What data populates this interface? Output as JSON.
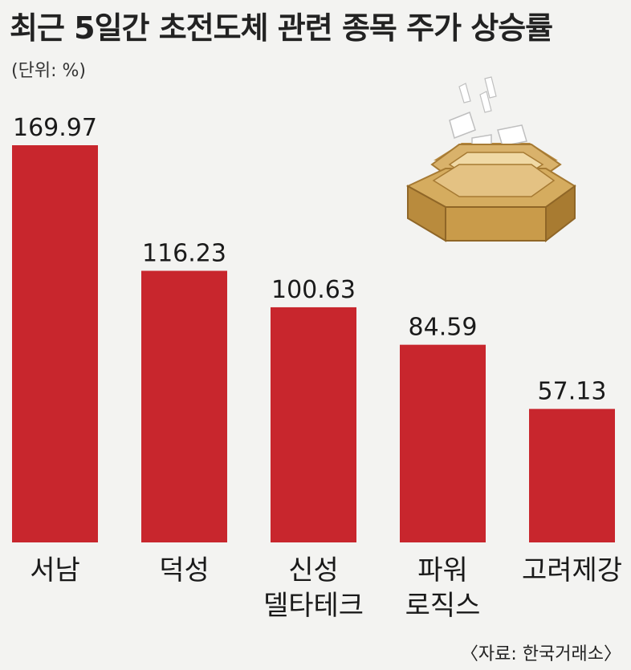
{
  "header": {
    "title": "최근 5일간 초전도체 관련 종목 주가 상승률",
    "unit": "(단위: %)"
  },
  "source": "〈자료: 한국거래소〉",
  "chart_data": {
    "type": "bar",
    "categories": [
      [
        "서남"
      ],
      [
        "덕성"
      ],
      [
        "신성",
        "델타테크"
      ],
      [
        "파워",
        "로직스"
      ],
      [
        "고려제강"
      ]
    ],
    "values": [
      169.97,
      116.23,
      100.63,
      84.59,
      57.13
    ],
    "value_labels": [
      "169.97",
      "116.23",
      "100.63",
      "84.59",
      "57.13"
    ],
    "ylim": [
      0,
      169.97
    ],
    "bar_color": "#c8262d",
    "grid": false,
    "legend": "none"
  },
  "colors": {
    "bar": "#c8262d",
    "background": "#f3f3f1",
    "ballot_box": "#d2a95a"
  },
  "illustration": "ballot-box-icon"
}
